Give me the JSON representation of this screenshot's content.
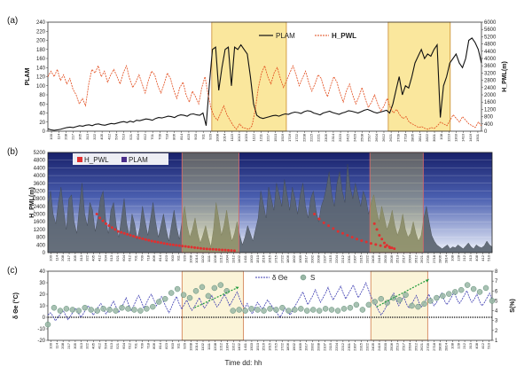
{
  "chart_data": [
    {
      "panel": "(a)",
      "type": "line",
      "x_tick_labels": [
        "100",
        "114",
        "208",
        "217",
        "305",
        "313",
        "322",
        "405",
        "412",
        "504",
        "513",
        "521",
        "604",
        "612",
        "701",
        "709",
        "718",
        "806",
        "814",
        "823",
        "903",
        "911",
        "920",
        "1008",
        "1014",
        "1115",
        "1013",
        "1020",
        "1112",
        "1211",
        "1217",
        "1510",
        "1516",
        "1716",
        "1722",
        "2208",
        "2215",
        "2221",
        "2305",
        "2314",
        "2323",
        "2415",
        "2420",
        "2508",
        "2517",
        "2604",
        "2612",
        "2621",
        "2709",
        "2718",
        "2805",
        "2814",
        "2822",
        "3001",
        "108",
        "1210",
        "1303",
        "1410",
        "1416",
        "1501"
      ],
      "y_left": {
        "label": "PLAM",
        "ticks": [
          0,
          20,
          40,
          60,
          80,
          100,
          120,
          140,
          160,
          180,
          200,
          220,
          240
        ],
        "range": [
          0,
          240
        ]
      },
      "y_right": {
        "label": "H_PML(m)",
        "ticks": [
          0,
          400,
          800,
          1200,
          1600,
          2000,
          2400,
          2800,
          3200,
          3600,
          4000,
          4400,
          4800,
          5200,
          5600,
          6000
        ],
        "range": [
          0,
          6000
        ]
      },
      "series": [
        {
          "name": "PLAM",
          "axis": "left",
          "color": "#111111",
          "values": [
            5,
            3,
            2,
            3,
            4,
            6,
            8,
            9,
            8,
            10,
            12,
            11,
            13,
            14,
            12,
            15,
            16,
            14,
            13,
            15,
            17,
            16,
            18,
            20,
            21,
            19,
            22,
            20,
            24,
            23,
            25,
            27,
            26,
            24,
            28,
            30,
            29,
            31,
            33,
            32,
            30,
            34,
            36,
            35,
            33,
            37,
            38,
            36,
            35,
            40,
            12,
            100,
            180,
            185,
            90,
            140,
            180,
            185,
            100,
            185,
            180,
            190,
            180,
            170,
            120,
            60,
            35,
            30,
            28,
            30,
            32,
            34,
            35,
            33,
            36,
            38,
            37,
            40,
            42,
            41,
            39,
            43,
            45,
            44,
            40,
            38,
            36,
            40,
            42,
            44,
            41,
            39,
            37,
            40,
            42,
            45,
            44,
            42,
            40,
            43,
            46,
            48,
            45,
            42,
            40,
            42,
            44,
            46,
            40,
            60,
            90,
            120,
            80,
            100,
            95,
            120,
            150,
            165,
            180,
            160,
            170,
            165,
            180,
            190,
            30,
            100,
            120,
            150,
            160,
            170,
            150,
            140,
            160,
            200,
            205,
            195,
            180,
            150
          ]
        },
        {
          "name": "H_PWL",
          "axis": "right",
          "color": "#e24a1a",
          "values": [
            3000,
            3300,
            3000,
            3400,
            2800,
            3100,
            2600,
            2900,
            2300,
            2000,
            1500,
            1800,
            1400,
            2600,
            3400,
            3200,
            3600,
            3000,
            3300,
            2700,
            3100,
            3400,
            3000,
            2600,
            3200,
            3600,
            2900,
            2400,
            2700,
            3100,
            2600,
            2100,
            2800,
            3300,
            3100,
            2500,
            2100,
            2600,
            3200,
            2900,
            2300,
            1800,
            2400,
            2700,
            2000,
            1600,
            2200,
            1900,
            1500,
            2400,
            3000,
            2000,
            1200,
            800,
            600,
            1000,
            1400,
            900,
            600,
            300,
            100,
            400,
            200,
            150,
            100,
            300,
            1200,
            2400,
            3200,
            3600,
            3000,
            2600,
            3200,
            3500,
            2900,
            2400,
            2800,
            3200,
            3600,
            3100,
            2500,
            2900,
            3300,
            2700,
            2200,
            2600,
            3100,
            2900,
            2300,
            1900,
            2500,
            3000,
            2700,
            2100,
            1600,
            2200,
            2600,
            2000,
            1500,
            1900,
            2400,
            1800,
            1300,
            1600,
            2000,
            1500,
            1100,
            1400,
            1800,
            1300,
            1000,
            1200,
            900,
            700,
            800,
            500,
            400,
            300,
            200,
            250,
            150,
            100,
            200,
            150,
            300,
            500,
            400,
            300,
            600,
            900,
            700,
            500,
            800,
            600,
            400,
            300,
            200,
            500,
            300
          ]
        }
      ],
      "highlight_regions_fraction": [
        [
          0.378,
          0.55
        ],
        [
          0.785,
          0.928
        ]
      ]
    },
    {
      "panel": "(b)",
      "type": "area",
      "y_axis": {
        "label": "H_PML(m)",
        "ticks": [
          0,
          400,
          800,
          1200,
          1600,
          2000,
          2400,
          2800,
          3200,
          3600,
          4000,
          4400,
          4800,
          5200
        ],
        "range": [
          0,
          5200
        ]
      },
      "x_tick_labels": [
        "100",
        "114",
        "208",
        "217",
        "305",
        "313",
        "322",
        "405",
        "412",
        "504",
        "513",
        "521",
        "604",
        "612",
        "701",
        "709",
        "718",
        "806",
        "814",
        "823",
        "903",
        "911",
        "920",
        "1008",
        "1014",
        "1102",
        "1111",
        "1208",
        "1212",
        "1304",
        "1312",
        "1402",
        "1411",
        "1503",
        "1510",
        "1516",
        "1615",
        "1715",
        "1722",
        "1806",
        "1902",
        "1909",
        "1917",
        "2002",
        "2008",
        "2107",
        "2115",
        "2204",
        "2212",
        "2301",
        "2307",
        "2315",
        "2322",
        "2405",
        "2416",
        "2500",
        "2506",
        "2513",
        "2517",
        "2604",
        "2612",
        "2621",
        "2709",
        "2718",
        "2806",
        "2814",
        "108",
        "128",
        "212",
        "313",
        "408",
        "412",
        "510"
      ],
      "legend": [
        "H_PWL",
        "PLAM"
      ],
      "series": [
        {
          "name": "PLAM",
          "color": "#5a6470",
          "values": [
            2400,
            3200,
            2000,
            1500,
            2600,
            3400,
            2200,
            1200,
            2800,
            3000,
            1600,
            1000,
            2400,
            3600,
            2000,
            1400,
            2600,
            2200,
            1100,
            1800,
            2800,
            3200,
            1700,
            1000,
            2200,
            2600,
            1400,
            800,
            1800,
            2800,
            1500,
            900,
            2000,
            1500,
            700,
            1300,
            2400,
            1600,
            900,
            1700,
            2600,
            1600,
            800,
            1400,
            2000,
            1200,
            600,
            1400,
            2200,
            1300,
            700,
            1600,
            2400,
            1400,
            800,
            1200,
            1800,
            1000,
            500,
            900,
            1400,
            800,
            300,
            1200,
            2600,
            1800,
            900,
            1400,
            2200,
            1300,
            600,
            1000,
            1600,
            900,
            400,
            800,
            1400,
            1000,
            600,
            1200,
            1800,
            3200,
            2500,
            1800,
            3400,
            2800,
            2200,
            3600,
            3000,
            2400,
            3800,
            3000,
            2200,
            3400,
            2800,
            2000,
            3000,
            3600,
            2400,
            1800,
            2800,
            3200,
            2200,
            1600,
            2400,
            2800,
            3400,
            4200,
            3000,
            2400,
            3600,
            4200,
            3200,
            2600,
            4600,
            3400,
            2800,
            3600,
            3000,
            2400,
            3200,
            2800,
            2000,
            2600,
            3000,
            2200,
            1600,
            2400,
            1800,
            1200,
            1600,
            2200,
            1400,
            900,
            1300,
            2000,
            1200,
            800,
            1000,
            1600,
            1000,
            600,
            900,
            1800,
            2400,
            1600,
            900,
            600,
            400,
            300,
            200,
            300,
            400,
            200,
            300,
            250,
            400,
            300,
            200,
            350,
            500,
            300,
            200,
            400,
            300,
            250,
            350,
            600,
            400,
            300
          ]
        },
        {
          "name": "H_PWL",
          "color": "#e03030",
          "values": [
            2000,
            1800,
            1650,
            1500,
            1400,
            1300,
            1200,
            1100,
            1050,
            1000,
            950,
            900,
            850,
            800,
            760,
            720,
            680,
            640,
            600,
            570,
            540,
            510,
            480,
            450,
            420,
            400,
            380,
            360,
            340,
            320,
            300,
            280,
            260,
            240,
            220,
            200,
            190,
            180,
            170,
            160,
            150,
            140,
            130,
            120,
            110,
            100,
            2000,
            1750,
            1550,
            1400,
            1250,
            1100,
            1000,
            900,
            800,
            700,
            620,
            550,
            480,
            420,
            360,
            300,
            250,
            1500,
            1200,
            900,
            700,
            500,
            380,
            300,
            250,
            200
          ]
        }
      ],
      "highlight_regions_fraction": [
        [
          0.302,
          0.43
        ],
        [
          0.725,
          0.845
        ]
      ]
    },
    {
      "panel": "(c)",
      "type": "line",
      "xlabel": "Time dd: hh",
      "y_left": {
        "label": "δ Θe (°C)",
        "ticks": [
          -20,
          -10,
          0,
          10,
          20,
          30,
          40
        ],
        "range": [
          -20,
          40
        ]
      },
      "y_right": {
        "label": "S(%)",
        "ticks": [
          1,
          2,
          3,
          4,
          5,
          6,
          7,
          8
        ],
        "range": [
          1,
          8
        ]
      },
      "x_tick_labels": [
        "100",
        "114",
        "208",
        "217",
        "305",
        "313",
        "322",
        "405",
        "412",
        "504",
        "513",
        "521",
        "604",
        "612",
        "701",
        "709",
        "718",
        "806",
        "814",
        "823",
        "903",
        "911",
        "920",
        "1008",
        "1014",
        "1102",
        "1111",
        "1208",
        "1212",
        "1304",
        "1312",
        "1402",
        "1411",
        "1503",
        "1510",
        "1516",
        "1615",
        "1715",
        "1722",
        "1806",
        "1902",
        "1909",
        "1917",
        "2002",
        "2008",
        "2107",
        "2115",
        "2204",
        "2212",
        "2301",
        "2307",
        "2315",
        "2322",
        "2405",
        "2416",
        "2500",
        "2506",
        "2513",
        "2517",
        "2604",
        "2612",
        "2621",
        "2709",
        "2718",
        "2806",
        "2814",
        "108",
        "128",
        "212",
        "313",
        "408",
        "412",
        "510"
      ],
      "series": [
        {
          "name": "δ Θe",
          "axis": "left",
          "color": "#3a3ab0",
          "values": [
            2,
            4,
            1,
            -3,
            0,
            3,
            6,
            2,
            -2,
            1,
            5,
            8,
            4,
            0,
            3,
            7,
            10,
            6,
            2,
            5,
            9,
            12,
            7,
            3,
            6,
            10,
            14,
            9,
            4,
            8,
            12,
            17,
            11,
            6,
            10,
            15,
            19,
            14,
            8,
            12,
            17,
            20,
            15,
            10,
            14,
            18,
            13,
            8,
            4,
            9,
            14,
            18,
            12,
            7,
            11,
            15,
            10,
            6,
            9,
            13,
            17,
            12,
            8,
            11,
            15,
            19,
            13,
            9,
            12,
            16,
            20,
            15,
            10,
            14,
            18,
            22,
            16,
            11,
            8,
            12,
            6,
            3,
            8,
            13,
            10,
            7,
            11,
            15,
            12,
            9,
            6,
            3,
            0,
            4,
            8,
            5,
            2,
            6,
            10,
            14,
            18,
            22,
            16,
            11,
            15,
            19,
            24,
            18,
            13,
            17,
            21,
            26,
            20,
            15,
            19,
            23,
            27,
            21,
            16,
            20,
            24,
            28,
            22,
            17,
            21,
            25,
            30,
            24,
            18,
            14,
            10,
            6,
            2,
            5,
            9,
            13,
            17,
            21,
            15,
            10,
            14,
            18,
            12,
            8,
            11,
            15,
            19,
            13,
            9,
            12,
            16,
            20,
            14,
            10,
            13,
            17,
            21,
            15,
            11,
            14,
            18,
            22,
            16,
            12,
            15,
            19,
            23,
            17,
            13,
            16,
            20,
            14,
            10,
            13,
            17,
            21,
            15
          ]
        },
        {
          "name": "S",
          "axis": "right",
          "color": "#99b7a6",
          "values": [
            2.6,
            4.3,
            4.0,
            4.2,
            4.1,
            4.0,
            4.3,
            4.1,
            4.0,
            4.2,
            4.1,
            4.0,
            4.3,
            4.2,
            4.1,
            4.0,
            4.2,
            4.4,
            4.9,
            5.2,
            5.8,
            6.2,
            5.6,
            5.3,
            6.0,
            6.4,
            5.5,
            6.3,
            6.6,
            6.0,
            4.0,
            4.1,
            4.0,
            4.2,
            4.1,
            4.0,
            4.2,
            4.1,
            4.3,
            4.0,
            4.1,
            4.2,
            4.0,
            4.1,
            4.0,
            4.2,
            4.1,
            4.0,
            4.2,
            4.3,
            4.6,
            4.1,
            4.6,
            4.9,
            5.2,
            4.8,
            5.3,
            5.1,
            5.6,
            4.5,
            4.4,
            4.7,
            5.0,
            5.3,
            5.5,
            5.7,
            5.9,
            6.1,
            6.6,
            6.2,
            5.9,
            6.3,
            5.0
          ]
        }
      ],
      "highlight_regions_fraction": [
        [
          0.302,
          0.44
        ],
        [
          0.727,
          0.855
        ]
      ]
    }
  ]
}
